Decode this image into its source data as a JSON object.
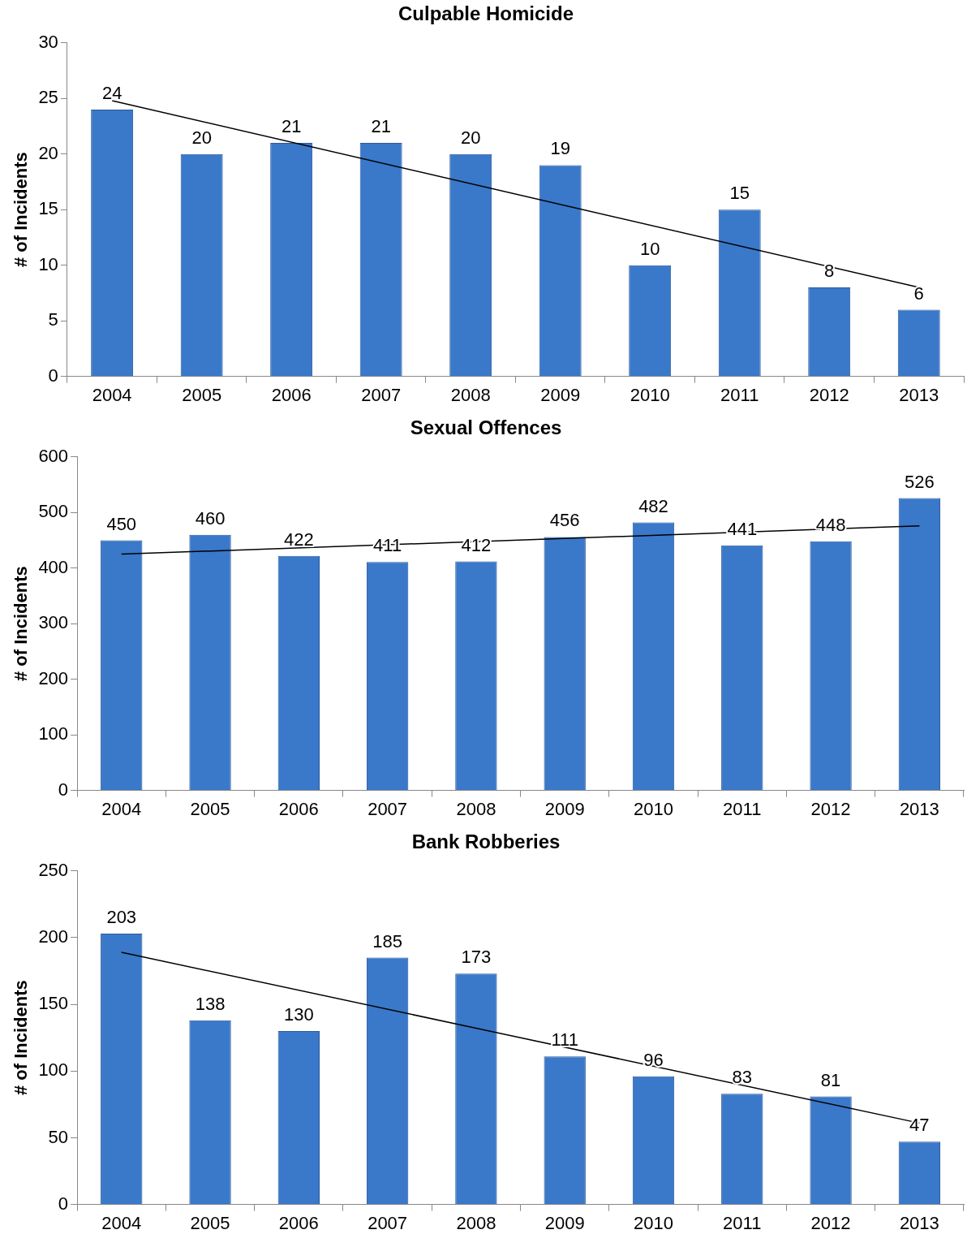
{
  "chart_data": [
    {
      "type": "bar",
      "title": "Culpable Homicide",
      "ylabel": "# of Incidents",
      "categories": [
        "2004",
        "2005",
        "2006",
        "2007",
        "2008",
        "2009",
        "2010",
        "2011",
        "2012",
        "2013"
      ],
      "ylim": [
        0,
        30
      ],
      "yticks": [
        0,
        5,
        10,
        15,
        20,
        25,
        30
      ],
      "grid": false,
      "legend": false,
      "series": [
        {
          "color": "#3a78c9",
          "values": [
            24,
            20,
            21,
            21,
            20,
            19,
            10,
            15,
            8,
            6
          ],
          "value_labels": [
            "24",
            "20",
            "21",
            "21",
            "20",
            "19",
            "10",
            "15",
            "8",
            "6"
          ]
        },
        {
          "type": "line",
          "color": "#000000",
          "marker": "none",
          "values": [
            24.8,
            null,
            null,
            null,
            null,
            null,
            null,
            null,
            null,
            8.0
          ]
        }
      ]
    },
    {
      "type": "bar",
      "title": "Sexual Offences",
      "ylabel": "# of Incidents",
      "categories": [
        "2004",
        "2005",
        "2006",
        "2007",
        "2008",
        "2009",
        "2010",
        "2011",
        "2012",
        "2013"
      ],
      "ylim": [
        0,
        600
      ],
      "yticks": [
        0,
        100,
        200,
        300,
        400,
        500,
        600
      ],
      "grid": false,
      "legend": false,
      "series": [
        {
          "color": "#3a78c9",
          "values": [
            450,
            460,
            422,
            411,
            412,
            456,
            482,
            441,
            448,
            526
          ],
          "value_labels": [
            "450",
            "460",
            "422",
            "411",
            "412",
            "456",
            "482",
            "441",
            "448",
            "526"
          ]
        },
        {
          "type": "line",
          "color": "#000000",
          "marker": "none",
          "values": [
            425,
            null,
            null,
            null,
            null,
            null,
            null,
            null,
            null,
            476
          ]
        }
      ]
    },
    {
      "type": "bar",
      "title": "Bank Robberies",
      "ylabel": "# of Incidents",
      "categories": [
        "2004",
        "2005",
        "2006",
        "2007",
        "2008",
        "2009",
        "2010",
        "2011",
        "2012",
        "2013"
      ],
      "ylim": [
        0,
        250
      ],
      "yticks": [
        0,
        50,
        100,
        150,
        200,
        250
      ],
      "grid": false,
      "legend": false,
      "series": [
        {
          "color": "#3a78c9",
          "values": [
            203,
            138,
            130,
            185,
            173,
            111,
            96,
            83,
            81,
            47
          ],
          "value_labels": [
            "203",
            "138",
            "130",
            "185",
            "173",
            "111",
            "96",
            "83",
            "81",
            "47"
          ]
        },
        {
          "type": "line",
          "color": "#000000",
          "marker": "none",
          "values": [
            189,
            null,
            null,
            null,
            null,
            null,
            null,
            null,
            null,
            61
          ]
        }
      ]
    }
  ]
}
